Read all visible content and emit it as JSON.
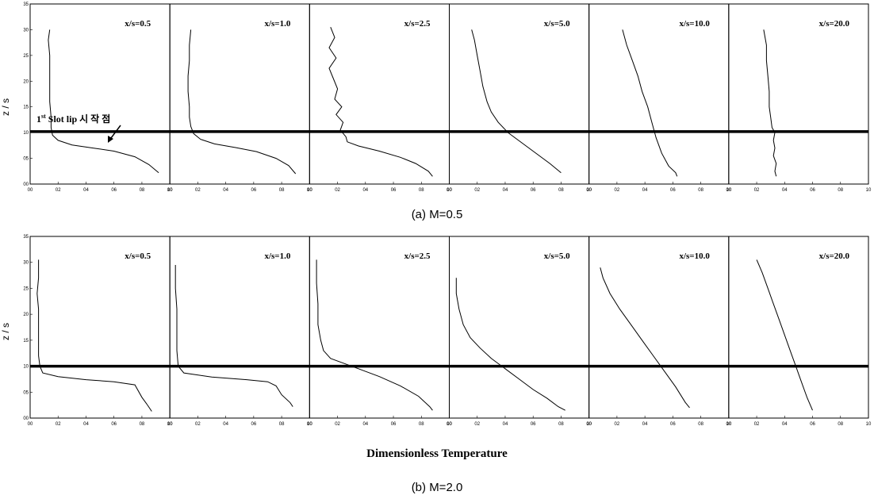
{
  "x_axis_title": "Dimensionless Temperature",
  "y_axis_title": "z / s",
  "annotation": {
    "text": "1",
    "superscript": "st",
    "rest": " Slot lip 시 작 점"
  },
  "chart_data": [
    {
      "type": "line",
      "caption": "(a) M=0.5",
      "xlim": [
        0.0,
        1.0
      ],
      "ylim": [
        0.0,
        3.5
      ],
      "x_ticks": [
        "00",
        "02",
        "04",
        "06",
        "08",
        "10"
      ],
      "y_ticks": [
        "00",
        "05",
        "10",
        "15",
        "20",
        "25",
        "30",
        "35"
      ],
      "reference_line_y": 1.02,
      "panels": [
        {
          "label": "x/s=0.5",
          "points": [
            [
              0.14,
              3.0
            ],
            [
              0.13,
              2.8
            ],
            [
              0.14,
              2.5
            ],
            [
              0.14,
              2.2
            ],
            [
              0.14,
              1.9
            ],
            [
              0.14,
              1.6
            ],
            [
              0.15,
              1.3
            ],
            [
              0.15,
              1.1
            ],
            [
              0.16,
              0.95
            ],
            [
              0.2,
              0.85
            ],
            [
              0.3,
              0.76
            ],
            [
              0.45,
              0.7
            ],
            [
              0.6,
              0.64
            ],
            [
              0.75,
              0.53
            ],
            [
              0.85,
              0.38
            ],
            [
              0.92,
              0.22
            ]
          ]
        },
        {
          "label": "x/s=1.0",
          "points": [
            [
              0.15,
              3.0
            ],
            [
              0.14,
              2.7
            ],
            [
              0.14,
              2.4
            ],
            [
              0.13,
              2.1
            ],
            [
              0.13,
              1.8
            ],
            [
              0.14,
              1.5
            ],
            [
              0.14,
              1.3
            ],
            [
              0.15,
              1.12
            ],
            [
              0.17,
              0.98
            ],
            [
              0.22,
              0.87
            ],
            [
              0.32,
              0.78
            ],
            [
              0.47,
              0.71
            ],
            [
              0.62,
              0.63
            ],
            [
              0.76,
              0.5
            ],
            [
              0.85,
              0.36
            ],
            [
              0.9,
              0.2
            ]
          ]
        },
        {
          "label": "x/s=2.5",
          "points": [
            [
              0.15,
              3.05
            ],
            [
              0.18,
              2.85
            ],
            [
              0.14,
              2.65
            ],
            [
              0.19,
              2.45
            ],
            [
              0.14,
              2.25
            ],
            [
              0.17,
              2.05
            ],
            [
              0.2,
              1.85
            ],
            [
              0.18,
              1.65
            ],
            [
              0.23,
              1.5
            ],
            [
              0.19,
              1.35
            ],
            [
              0.24,
              1.2
            ],
            [
              0.22,
              1.05
            ],
            [
              0.26,
              0.92
            ],
            [
              0.27,
              0.82
            ],
            [
              0.35,
              0.74
            ],
            [
              0.5,
              0.64
            ],
            [
              0.65,
              0.52
            ],
            [
              0.76,
              0.4
            ],
            [
              0.85,
              0.25
            ],
            [
              0.88,
              0.15
            ]
          ]
        },
        {
          "label": "x/s=5.0",
          "points": [
            [
              0.16,
              3.0
            ],
            [
              0.18,
              2.8
            ],
            [
              0.2,
              2.5
            ],
            [
              0.22,
              2.2
            ],
            [
              0.24,
              1.9
            ],
            [
              0.27,
              1.6
            ],
            [
              0.3,
              1.4
            ],
            [
              0.35,
              1.2
            ],
            [
              0.42,
              1.0
            ],
            [
              0.52,
              0.8
            ],
            [
              0.62,
              0.6
            ],
            [
              0.72,
              0.4
            ],
            [
              0.8,
              0.22
            ]
          ]
        },
        {
          "label": "x/s=10.0",
          "points": [
            [
              0.24,
              3.0
            ],
            [
              0.27,
              2.7
            ],
            [
              0.31,
              2.4
            ],
            [
              0.35,
              2.1
            ],
            [
              0.38,
              1.8
            ],
            [
              0.42,
              1.5
            ],
            [
              0.45,
              1.2
            ],
            [
              0.48,
              0.9
            ],
            [
              0.52,
              0.6
            ],
            [
              0.57,
              0.35
            ],
            [
              0.62,
              0.22
            ],
            [
              0.63,
              0.15
            ]
          ]
        },
        {
          "label": "x/s=20.0",
          "points": [
            [
              0.25,
              3.0
            ],
            [
              0.27,
              2.7
            ],
            [
              0.27,
              2.4
            ],
            [
              0.28,
              2.1
            ],
            [
              0.29,
              1.8
            ],
            [
              0.29,
              1.5
            ],
            [
              0.3,
              1.3
            ],
            [
              0.31,
              1.1
            ],
            [
              0.33,
              1.0
            ],
            [
              0.32,
              0.85
            ],
            [
              0.33,
              0.7
            ],
            [
              0.32,
              0.55
            ],
            [
              0.34,
              0.4
            ],
            [
              0.33,
              0.25
            ],
            [
              0.34,
              0.15
            ]
          ]
        }
      ]
    },
    {
      "type": "line",
      "caption": "(b) M=2.0",
      "xlim": [
        0.0,
        1.0
      ],
      "ylim": [
        0.0,
        3.5
      ],
      "x_ticks": [
        "00",
        "02",
        "04",
        "06",
        "08",
        "10"
      ],
      "y_ticks": [
        "00",
        "05",
        "10",
        "15",
        "20",
        "25",
        "30",
        "35"
      ],
      "reference_line_y": 1.0,
      "panels": [
        {
          "label": "x/s=0.5",
          "points": [
            [
              0.06,
              3.05
            ],
            [
              0.06,
              2.7
            ],
            [
              0.05,
              2.4
            ],
            [
              0.06,
              2.1
            ],
            [
              0.06,
              1.8
            ],
            [
              0.06,
              1.5
            ],
            [
              0.06,
              1.2
            ],
            [
              0.07,
              1.0
            ],
            [
              0.09,
              0.87
            ],
            [
              0.2,
              0.8
            ],
            [
              0.4,
              0.74
            ],
            [
              0.6,
              0.7
            ],
            [
              0.75,
              0.64
            ],
            [
              0.8,
              0.4
            ],
            [
              0.84,
              0.25
            ],
            [
              0.87,
              0.13
            ]
          ]
        },
        {
          "label": "x/s=1.0",
          "points": [
            [
              0.04,
              2.95
            ],
            [
              0.04,
              2.5
            ],
            [
              0.05,
              2.1
            ],
            [
              0.05,
              1.7
            ],
            [
              0.05,
              1.3
            ],
            [
              0.06,
              1.0
            ],
            [
              0.1,
              0.87
            ],
            [
              0.3,
              0.79
            ],
            [
              0.55,
              0.74
            ],
            [
              0.7,
              0.7
            ],
            [
              0.76,
              0.62
            ],
            [
              0.8,
              0.45
            ],
            [
              0.86,
              0.3
            ],
            [
              0.88,
              0.22
            ]
          ]
        },
        {
          "label": "x/s=2.5",
          "points": [
            [
              0.05,
              3.05
            ],
            [
              0.05,
              2.6
            ],
            [
              0.06,
              2.2
            ],
            [
              0.06,
              1.8
            ],
            [
              0.08,
              1.5
            ],
            [
              0.1,
              1.3
            ],
            [
              0.15,
              1.15
            ],
            [
              0.25,
              1.05
            ],
            [
              0.35,
              0.95
            ],
            [
              0.5,
              0.8
            ],
            [
              0.65,
              0.62
            ],
            [
              0.78,
              0.42
            ],
            [
              0.86,
              0.22
            ],
            [
              0.88,
              0.15
            ]
          ]
        },
        {
          "label": "x/s=5.0",
          "points": [
            [
              0.05,
              2.7
            ],
            [
              0.05,
              2.4
            ],
            [
              0.07,
              2.1
            ],
            [
              0.1,
              1.8
            ],
            [
              0.15,
              1.55
            ],
            [
              0.22,
              1.35
            ],
            [
              0.3,
              1.15
            ],
            [
              0.4,
              0.95
            ],
            [
              0.5,
              0.75
            ],
            [
              0.6,
              0.55
            ],
            [
              0.7,
              0.38
            ],
            [
              0.78,
              0.22
            ],
            [
              0.83,
              0.15
            ]
          ]
        },
        {
          "label": "x/s=10.0",
          "points": [
            [
              0.08,
              2.9
            ],
            [
              0.1,
              2.7
            ],
            [
              0.15,
              2.4
            ],
            [
              0.22,
              2.1
            ],
            [
              0.3,
              1.8
            ],
            [
              0.38,
              1.5
            ],
            [
              0.46,
              1.2
            ],
            [
              0.54,
              0.9
            ],
            [
              0.62,
              0.6
            ],
            [
              0.69,
              0.3
            ],
            [
              0.72,
              0.2
            ]
          ]
        },
        {
          "label": "x/s=20.0",
          "points": [
            [
              0.2,
              3.05
            ],
            [
              0.24,
              2.8
            ],
            [
              0.28,
              2.5
            ],
            [
              0.32,
              2.2
            ],
            [
              0.36,
              1.9
            ],
            [
              0.4,
              1.6
            ],
            [
              0.44,
              1.3
            ],
            [
              0.48,
              1.0
            ],
            [
              0.52,
              0.7
            ],
            [
              0.56,
              0.4
            ],
            [
              0.6,
              0.15
            ]
          ]
        }
      ]
    }
  ]
}
